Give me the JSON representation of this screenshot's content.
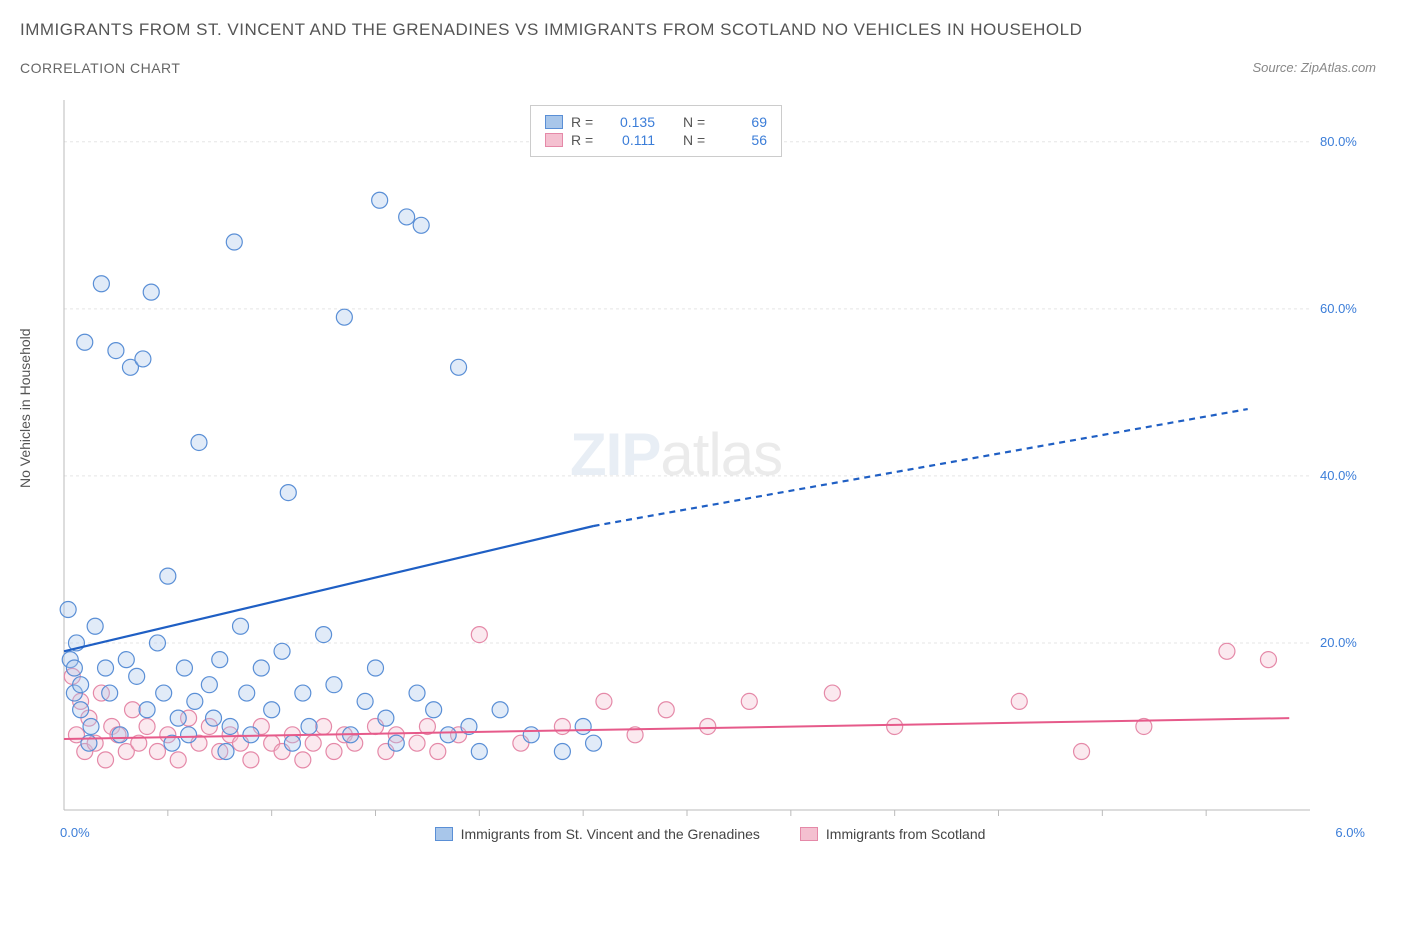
{
  "title": "IMMIGRANTS FROM ST. VINCENT AND THE GRENADINES VS IMMIGRANTS FROM SCOTLAND NO VEHICLES IN HOUSEHOLD",
  "subtitle": "CORRELATION CHART",
  "source": "Source: ZipAtlas.com",
  "watermark_bold": "ZIP",
  "watermark_thin": "atlas",
  "y_axis_label": "No Vehicles in Household",
  "chart": {
    "type": "scatter",
    "xlim": [
      0,
      6
    ],
    "ylim": [
      0,
      85
    ],
    "y_ticks": [
      20,
      40,
      60,
      80
    ],
    "y_tick_labels": [
      "20.0%",
      "40.0%",
      "60.0%",
      "80.0%"
    ],
    "x_origin_label": "0.0%",
    "x_max_label": "6.0%",
    "x_minor_ticks": [
      0.5,
      1.0,
      1.5,
      2.0,
      2.5,
      3.0,
      3.5,
      4.0,
      4.5,
      5.0,
      5.5
    ],
    "background_color": "#ffffff",
    "grid_color": "#e5e5e5",
    "axis_color": "#bbbbbb",
    "marker_radius": 8,
    "marker_stroke_width": 1.2,
    "marker_fill_opacity": 0.35,
    "series": [
      {
        "name": "Immigrants from St. Vincent and the Grenadines",
        "color_stroke": "#5a8fd6",
        "color_fill": "#a8c6ea",
        "R": "0.135",
        "N": "69",
        "trend": {
          "start": [
            0,
            19
          ],
          "solid_end": [
            2.55,
            34
          ],
          "dash_end": [
            5.7,
            48
          ],
          "color": "#1f5fc4",
          "width": 2.2
        },
        "points": [
          [
            0.02,
            24
          ],
          [
            0.03,
            18
          ],
          [
            0.05,
            17
          ],
          [
            0.05,
            14
          ],
          [
            0.06,
            20
          ],
          [
            0.08,
            12
          ],
          [
            0.08,
            15
          ],
          [
            0.1,
            56
          ],
          [
            0.12,
            8
          ],
          [
            0.13,
            10
          ],
          [
            0.15,
            22
          ],
          [
            0.18,
            63
          ],
          [
            0.2,
            17
          ],
          [
            0.22,
            14
          ],
          [
            0.25,
            55
          ],
          [
            0.27,
            9
          ],
          [
            0.3,
            18
          ],
          [
            0.32,
            53
          ],
          [
            0.35,
            16
          ],
          [
            0.38,
            54
          ],
          [
            0.4,
            12
          ],
          [
            0.42,
            62
          ],
          [
            0.45,
            20
          ],
          [
            0.48,
            14
          ],
          [
            0.5,
            28
          ],
          [
            0.52,
            8
          ],
          [
            0.55,
            11
          ],
          [
            0.58,
            17
          ],
          [
            0.6,
            9
          ],
          [
            0.63,
            13
          ],
          [
            0.65,
            44
          ],
          [
            0.7,
            15
          ],
          [
            0.72,
            11
          ],
          [
            0.75,
            18
          ],
          [
            0.78,
            7
          ],
          [
            0.8,
            10
          ],
          [
            0.82,
            68
          ],
          [
            0.85,
            22
          ],
          [
            0.88,
            14
          ],
          [
            0.9,
            9
          ],
          [
            0.95,
            17
          ],
          [
            1.0,
            12
          ],
          [
            1.05,
            19
          ],
          [
            1.08,
            38
          ],
          [
            1.1,
            8
          ],
          [
            1.15,
            14
          ],
          [
            1.18,
            10
          ],
          [
            1.25,
            21
          ],
          [
            1.3,
            15
          ],
          [
            1.35,
            59
          ],
          [
            1.38,
            9
          ],
          [
            1.45,
            13
          ],
          [
            1.5,
            17
          ],
          [
            1.52,
            73
          ],
          [
            1.55,
            11
          ],
          [
            1.6,
            8
          ],
          [
            1.65,
            71
          ],
          [
            1.7,
            14
          ],
          [
            1.72,
            70
          ],
          [
            1.78,
            12
          ],
          [
            1.85,
            9
          ],
          [
            1.9,
            53
          ],
          [
            1.95,
            10
          ],
          [
            2.0,
            7
          ],
          [
            2.1,
            12
          ],
          [
            2.25,
            9
          ],
          [
            2.4,
            7
          ],
          [
            2.5,
            10
          ],
          [
            2.55,
            8
          ]
        ]
      },
      {
        "name": "Immigrants from Scotland",
        "color_stroke": "#e589a8",
        "color_fill": "#f4c0d0",
        "R": "0.111",
        "N": "56",
        "trend": {
          "start": [
            0,
            8.5
          ],
          "solid_end": [
            5.9,
            11
          ],
          "dash_end": null,
          "color": "#e65a8a",
          "width": 2
        },
        "points": [
          [
            0.04,
            16
          ],
          [
            0.06,
            9
          ],
          [
            0.08,
            13
          ],
          [
            0.1,
            7
          ],
          [
            0.12,
            11
          ],
          [
            0.15,
            8
          ],
          [
            0.18,
            14
          ],
          [
            0.2,
            6
          ],
          [
            0.23,
            10
          ],
          [
            0.26,
            9
          ],
          [
            0.3,
            7
          ],
          [
            0.33,
            12
          ],
          [
            0.36,
            8
          ],
          [
            0.4,
            10
          ],
          [
            0.45,
            7
          ],
          [
            0.5,
            9
          ],
          [
            0.55,
            6
          ],
          [
            0.6,
            11
          ],
          [
            0.65,
            8
          ],
          [
            0.7,
            10
          ],
          [
            0.75,
            7
          ],
          [
            0.8,
            9
          ],
          [
            0.85,
            8
          ],
          [
            0.9,
            6
          ],
          [
            0.95,
            10
          ],
          [
            1.0,
            8
          ],
          [
            1.05,
            7
          ],
          [
            1.1,
            9
          ],
          [
            1.15,
            6
          ],
          [
            1.2,
            8
          ],
          [
            1.25,
            10
          ],
          [
            1.3,
            7
          ],
          [
            1.35,
            9
          ],
          [
            1.4,
            8
          ],
          [
            1.5,
            10
          ],
          [
            1.55,
            7
          ],
          [
            1.6,
            9
          ],
          [
            1.7,
            8
          ],
          [
            1.75,
            10
          ],
          [
            1.8,
            7
          ],
          [
            1.9,
            9
          ],
          [
            2.0,
            21
          ],
          [
            2.2,
            8
          ],
          [
            2.4,
            10
          ],
          [
            2.6,
            13
          ],
          [
            2.75,
            9
          ],
          [
            2.9,
            12
          ],
          [
            3.1,
            10
          ],
          [
            3.3,
            13
          ],
          [
            3.7,
            14
          ],
          [
            4.0,
            10
          ],
          [
            4.6,
            13
          ],
          [
            4.9,
            7
          ],
          [
            5.2,
            10
          ],
          [
            5.6,
            19
          ],
          [
            5.8,
            18
          ]
        ]
      }
    ],
    "legend_stats": {
      "r_label": "R =",
      "n_label": "N ="
    },
    "bottom_legend": [
      {
        "label": "Immigrants from St. Vincent and the Grenadines",
        "fill": "#a8c6ea",
        "stroke": "#5a8fd6"
      },
      {
        "label": "Immigrants from Scotland",
        "fill": "#f4c0d0",
        "stroke": "#e589a8"
      }
    ]
  }
}
